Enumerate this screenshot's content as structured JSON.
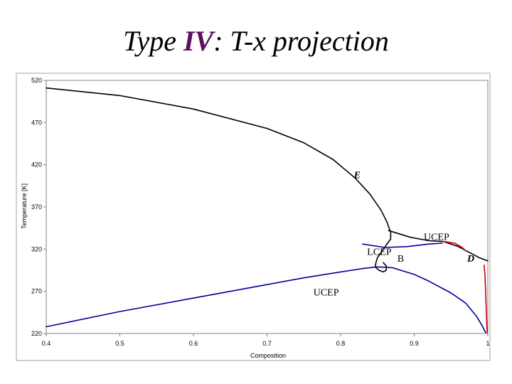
{
  "title": {
    "prefix": "Type ",
    "type_numeral": "IV",
    "suffix": ": T-x projection"
  },
  "chart_data": {
    "type": "line",
    "xlabel": "Composition",
    "ylabel": "Temperature [K]",
    "xlim": [
      0.4,
      1.0
    ],
    "ylim": [
      220,
      520
    ],
    "x_ticks": [
      {
        "value": 0.4,
        "label": "0.4"
      },
      {
        "value": 0.5,
        "label": "0.5"
      },
      {
        "value": 0.6,
        "label": "0.6"
      },
      {
        "value": 0.7,
        "label": "0.7"
      },
      {
        "value": 0.8,
        "label": "0.8"
      },
      {
        "value": 0.9,
        "label": "0.9"
      },
      {
        "value": 1.0,
        "label": "1"
      }
    ],
    "y_ticks": [
      {
        "value": 220,
        "label": "220"
      },
      {
        "value": 270,
        "label": "270"
      },
      {
        "value": 320,
        "label": "320"
      },
      {
        "value": 370,
        "label": "370"
      },
      {
        "value": 420,
        "label": "420"
      },
      {
        "value": 470,
        "label": "470"
      },
      {
        "value": 520,
        "label": "520"
      }
    ],
    "grid": false,
    "series": [
      {
        "color": "#000000",
        "points": [
          [
            0.4,
            511
          ],
          [
            0.5,
            502
          ],
          [
            0.6,
            486
          ],
          [
            0.7,
            463
          ],
          [
            0.75,
            446
          ],
          [
            0.79,
            426
          ],
          [
            0.82,
            404
          ],
          [
            0.84,
            385
          ],
          [
            0.855,
            366
          ],
          [
            0.863,
            352
          ],
          [
            0.868,
            340
          ],
          [
            0.868,
            332
          ],
          [
            0.862,
            325
          ],
          [
            0.855,
            316
          ],
          [
            0.85,
            310
          ],
          [
            0.848,
            304
          ],
          [
            0.847,
            299
          ],
          [
            0.852,
            295
          ],
          [
            0.858,
            293
          ],
          [
            0.862,
            295
          ],
          [
            0.862,
            300
          ],
          [
            0.858,
            304
          ]
        ]
      },
      {
        "color": "#000000",
        "points": [
          [
            0.865,
            342
          ],
          [
            0.895,
            334
          ],
          [
            0.92,
            330
          ],
          [
            0.94,
            329
          ],
          [
            0.96,
            323
          ],
          [
            0.975,
            316
          ],
          [
            0.988,
            310
          ],
          [
            1.0,
            306
          ]
        ]
      },
      {
        "color": "#000099",
        "points": [
          [
            0.4,
            228
          ],
          [
            0.5,
            246
          ],
          [
            0.6,
            262
          ],
          [
            0.7,
            278
          ],
          [
            0.75,
            286
          ],
          [
            0.8,
            293
          ],
          [
            0.83,
            297
          ],
          [
            0.85,
            299
          ],
          [
            0.87,
            298
          ],
          [
            0.9,
            290
          ],
          [
            0.92,
            282
          ],
          [
            0.95,
            268
          ],
          [
            0.97,
            256
          ],
          [
            0.985,
            240
          ],
          [
            0.993,
            228
          ],
          [
            0.997,
            221
          ]
        ]
      },
      {
        "color": "#000099",
        "points": [
          [
            0.83,
            326
          ],
          [
            0.86,
            322
          ],
          [
            0.89,
            323
          ],
          [
            0.92,
            326
          ],
          [
            0.938,
            327
          ]
        ]
      },
      {
        "color": "#cc0000",
        "points": [
          [
            0.94,
            329
          ],
          [
            0.955,
            327
          ],
          [
            0.965,
            322
          ],
          [
            0.97,
            318
          ]
        ]
      },
      {
        "color": "#cc0000",
        "points": [
          [
            0.995,
            301
          ],
          [
            0.996,
            290
          ],
          [
            0.997,
            270
          ],
          [
            0.998,
            245
          ],
          [
            0.999,
            221
          ]
        ]
      }
    ],
    "annotations": [
      {
        "text": "E",
        "x": 0.818,
        "y": 404,
        "style": "bold-italic"
      },
      {
        "text": "UCEP",
        "x": 0.913,
        "y": 331,
        "style": "regular"
      },
      {
        "text": "LCEP",
        "x": 0.836,
        "y": 313,
        "style": "regular"
      },
      {
        "text": "B",
        "x": 0.877,
        "y": 305,
        "style": "regular"
      },
      {
        "text": "D",
        "x": 0.972,
        "y": 305,
        "style": "bold-italic"
      },
      {
        "text": "UCEP",
        "x": 0.763,
        "y": 265,
        "style": "regular"
      }
    ]
  }
}
